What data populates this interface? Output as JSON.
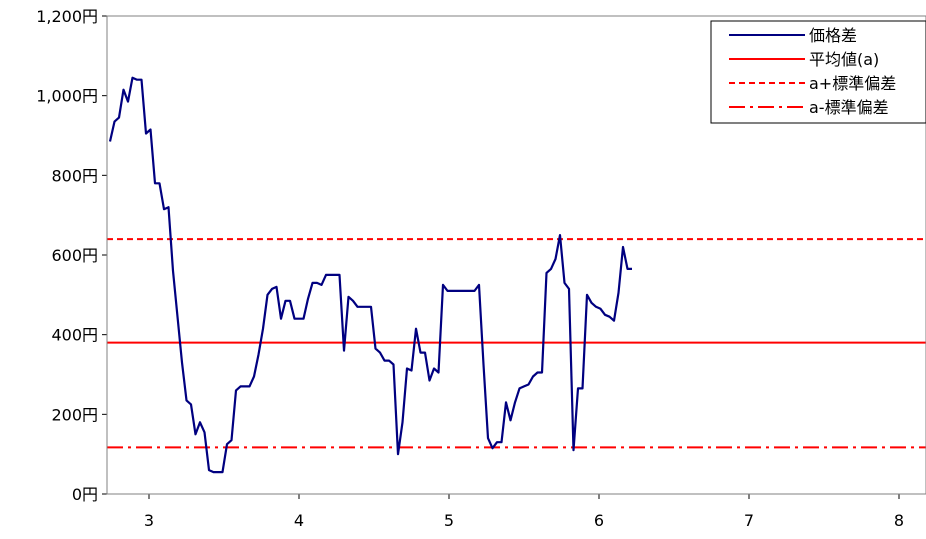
{
  "chart_data": {
    "type": "line",
    "title": "",
    "xlabel": "",
    "ylabel": "",
    "ylim": [
      0,
      1200
    ],
    "y_ticks": [
      0,
      200,
      400,
      600,
      800,
      1000,
      1200
    ],
    "y_tick_labels": [
      "0円",
      "200円",
      "400円",
      "600円",
      "800円",
      "1,000円",
      "1,200円"
    ],
    "xlim": [
      2.72,
      8.18
    ],
    "x_ticks": [
      3,
      4,
      5,
      6,
      7,
      8
    ],
    "x_tick_labels": [
      "3",
      "4",
      "5",
      "6",
      "7",
      "8"
    ],
    "grid": false,
    "legend_position": "top-right",
    "series": [
      {
        "name": "価格差",
        "color": "#000080",
        "style": "solid",
        "points": [
          [
            2.74,
            885
          ],
          [
            2.77,
            935
          ],
          [
            2.8,
            945
          ],
          [
            2.83,
            1015
          ],
          [
            2.86,
            985
          ],
          [
            2.89,
            1045
          ],
          [
            2.92,
            1040
          ],
          [
            2.95,
            1040
          ],
          [
            2.98,
            905
          ],
          [
            3.01,
            915
          ],
          [
            3.04,
            780
          ],
          [
            3.07,
            780
          ],
          [
            3.1,
            715
          ],
          [
            3.13,
            720
          ],
          [
            3.16,
            560
          ],
          [
            3.19,
            445
          ],
          [
            3.22,
            330
          ],
          [
            3.25,
            235
          ],
          [
            3.28,
            225
          ],
          [
            3.31,
            150
          ],
          [
            3.34,
            180
          ],
          [
            3.37,
            155
          ],
          [
            3.4,
            60
          ],
          [
            3.43,
            55
          ],
          [
            3.46,
            55
          ],
          [
            3.49,
            55
          ],
          [
            3.52,
            125
          ],
          [
            3.55,
            135
          ],
          [
            3.58,
            260
          ],
          [
            3.61,
            270
          ],
          [
            3.64,
            270
          ],
          [
            3.67,
            270
          ],
          [
            3.7,
            295
          ],
          [
            3.73,
            350
          ],
          [
            3.76,
            415
          ],
          [
            3.79,
            500
          ],
          [
            3.82,
            515
          ],
          [
            3.85,
            520
          ],
          [
            3.88,
            440
          ],
          [
            3.91,
            485
          ],
          [
            3.94,
            485
          ],
          [
            3.97,
            440
          ],
          [
            4.0,
            440
          ],
          [
            4.03,
            440
          ],
          [
            4.06,
            490
          ],
          [
            4.09,
            530
          ],
          [
            4.12,
            530
          ],
          [
            4.15,
            525
          ],
          [
            4.18,
            550
          ],
          [
            4.21,
            550
          ],
          [
            4.24,
            550
          ],
          [
            4.27,
            550
          ],
          [
            4.3,
            360
          ],
          [
            4.33,
            495
          ],
          [
            4.36,
            485
          ],
          [
            4.39,
            470
          ],
          [
            4.42,
            470
          ],
          [
            4.45,
            470
          ],
          [
            4.48,
            470
          ],
          [
            4.51,
            365
          ],
          [
            4.54,
            355
          ],
          [
            4.57,
            335
          ],
          [
            4.6,
            335
          ],
          [
            4.63,
            325
          ],
          [
            4.66,
            100
          ],
          [
            4.69,
            180
          ],
          [
            4.72,
            315
          ],
          [
            4.75,
            310
          ],
          [
            4.78,
            415
          ],
          [
            4.81,
            355
          ],
          [
            4.84,
            355
          ],
          [
            4.87,
            285
          ],
          [
            4.9,
            315
          ],
          [
            4.93,
            305
          ],
          [
            4.96,
            525
          ],
          [
            4.99,
            510
          ],
          [
            5.02,
            510
          ],
          [
            5.05,
            510
          ],
          [
            5.08,
            510
          ],
          [
            5.11,
            510
          ],
          [
            5.14,
            510
          ],
          [
            5.17,
            510
          ],
          [
            5.2,
            525
          ],
          [
            5.23,
            325
          ],
          [
            5.26,
            140
          ],
          [
            5.29,
            115
          ],
          [
            5.32,
            130
          ],
          [
            5.35,
            130
          ],
          [
            5.38,
            230
          ],
          [
            5.41,
            185
          ],
          [
            5.44,
            230
          ],
          [
            5.47,
            265
          ],
          [
            5.5,
            270
          ],
          [
            5.53,
            275
          ],
          [
            5.56,
            295
          ],
          [
            5.59,
            305
          ],
          [
            5.62,
            305
          ],
          [
            5.65,
            555
          ],
          [
            5.68,
            565
          ],
          [
            5.71,
            590
          ],
          [
            5.74,
            650
          ],
          [
            5.77,
            530
          ],
          [
            5.8,
            515
          ],
          [
            5.83,
            110
          ],
          [
            5.86,
            265
          ],
          [
            5.89,
            265
          ],
          [
            5.92,
            500
          ],
          [
            5.95,
            480
          ],
          [
            5.98,
            470
          ],
          [
            6.01,
            465
          ],
          [
            6.04,
            450
          ],
          [
            6.07,
            445
          ],
          [
            6.1,
            435
          ],
          [
            6.13,
            505
          ],
          [
            6.16,
            620
          ],
          [
            6.19,
            565
          ],
          [
            6.22,
            565
          ]
        ]
      },
      {
        "name": "平均値(a)",
        "color": "#ff0000",
        "style": "solid",
        "value": 380
      },
      {
        "name": "a+標準偏差",
        "color": "#ff0000",
        "style": "dashed",
        "value": 640
      },
      {
        "name": "a-標準偏差",
        "color": "#ff0000",
        "style": "dashdot",
        "value": 117
      }
    ]
  }
}
